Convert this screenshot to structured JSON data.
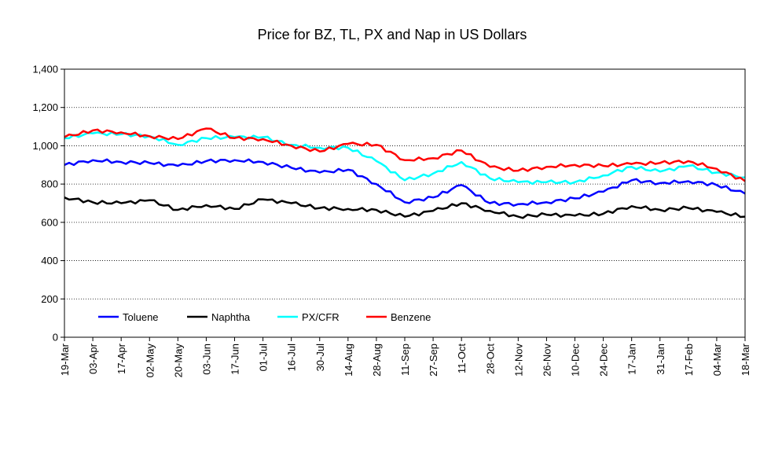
{
  "chart_data": {
    "type": "line",
    "title": "Price for BZ, TL, PX and Nap in US Dollars",
    "xlabel": "",
    "ylabel": "",
    "ylim": [
      0,
      1400
    ],
    "yticks": [
      0,
      200,
      400,
      600,
      800,
      1000,
      1200,
      1400
    ],
    "ytick_labels": [
      "0",
      "200",
      "400",
      "600",
      "800",
      "1,000",
      "1,200",
      "1,400"
    ],
    "grid": "horizontal dotted",
    "legend_position": "bottom-left",
    "categories": [
      "19-Mar",
      "03-Apr",
      "17-Apr",
      "02-May",
      "20-May",
      "03-Jun",
      "17-Jun",
      "01-Jul",
      "16-Jul",
      "30-Jul",
      "14-Aug",
      "28-Aug",
      "11-Sep",
      "27-Sep",
      "11-Oct",
      "28-Oct",
      "12-Nov",
      "26-Nov",
      "10-Dec",
      "24-Dec",
      "17-Jan",
      "31-Jan",
      "17-Feb",
      "04-Mar",
      "18-Mar"
    ],
    "series": [
      {
        "name": "Toluene",
        "color": "#0000ff",
        "values": [
          900,
          925,
          915,
          910,
          895,
          920,
          925,
          915,
          885,
          860,
          875,
          800,
          705,
          730,
          795,
          700,
          695,
          705,
          725,
          760,
          820,
          805,
          815,
          795,
          750
        ]
      },
      {
        "name": "Naphtha",
        "color": "#000000",
        "values": [
          730,
          705,
          700,
          715,
          665,
          690,
          670,
          720,
          700,
          675,
          670,
          665,
          630,
          660,
          700,
          660,
          630,
          640,
          635,
          645,
          685,
          665,
          675,
          655,
          630
        ]
      },
      {
        "name": "PX/CFR",
        "color": "#00ffff",
        "values": [
          1040,
          1065,
          1060,
          1050,
          1005,
          1040,
          1045,
          1045,
          1005,
          990,
          990,
          920,
          820,
          855,
          915,
          830,
          810,
          810,
          810,
          845,
          890,
          865,
          895,
          860,
          835
        ]
      },
      {
        "name": "Benzene",
        "color": "#ff0000",
        "values": [
          1045,
          1080,
          1070,
          1050,
          1035,
          1090,
          1040,
          1035,
          1000,
          970,
          1010,
          1005,
          925,
          935,
          975,
          890,
          870,
          890,
          900,
          895,
          905,
          910,
          920,
          880,
          815
        ]
      }
    ]
  }
}
